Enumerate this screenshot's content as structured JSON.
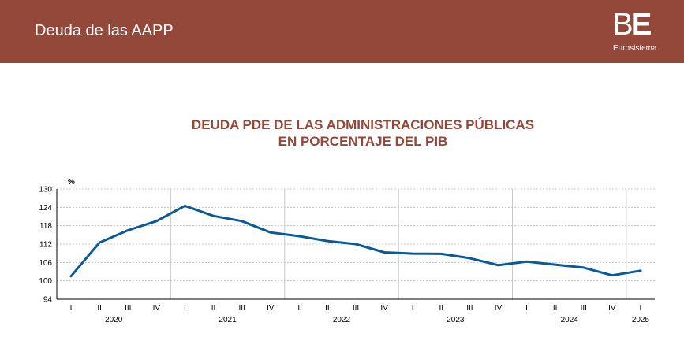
{
  "header": {
    "title": "Deuda de las AAPP",
    "logo_text_b": "B",
    "logo_text_e": "E",
    "logo_sub": "Eurosistema"
  },
  "colors": {
    "header_bg": "#93483a",
    "title": "#93483a",
    "line": "#0b5a97"
  },
  "chart_data": {
    "type": "line",
    "title": "DEUDA PDE DE LAS ADMINISTRACIONES PÚBLICAS",
    "subtitle": "EN PORCENTAJE DEL PIB",
    "ylabel": "%",
    "xlabel": "",
    "ylim": [
      94,
      130
    ],
    "yticks": [
      94,
      100,
      106,
      112,
      118,
      124,
      130
    ],
    "categories": [
      "I",
      "II",
      "III",
      "IV",
      "I",
      "II",
      "III",
      "IV",
      "I",
      "II",
      "III",
      "IV",
      "I",
      "II",
      "III",
      "IV",
      "I",
      "II",
      "III",
      "IV",
      "I"
    ],
    "years": [
      {
        "label": "2020",
        "start": 0,
        "end": 3
      },
      {
        "label": "2021",
        "start": 4,
        "end": 7
      },
      {
        "label": "2022",
        "start": 8,
        "end": 11
      },
      {
        "label": "2023",
        "start": 12,
        "end": 15
      },
      {
        "label": "2024",
        "start": 16,
        "end": 19
      },
      {
        "label": "2025",
        "start": 20,
        "end": 20
      }
    ],
    "series": [
      {
        "name": "Deuda PDE (% PIB)",
        "values": [
          101.5,
          112.5,
          116.5,
          119.5,
          124.5,
          121.2,
          119.5,
          115.8,
          114.6,
          113.0,
          112.0,
          109.3,
          108.9,
          108.8,
          107.4,
          105.1,
          106.3,
          105.3,
          104.3,
          101.8,
          103.3
        ]
      }
    ],
    "grid": true
  }
}
